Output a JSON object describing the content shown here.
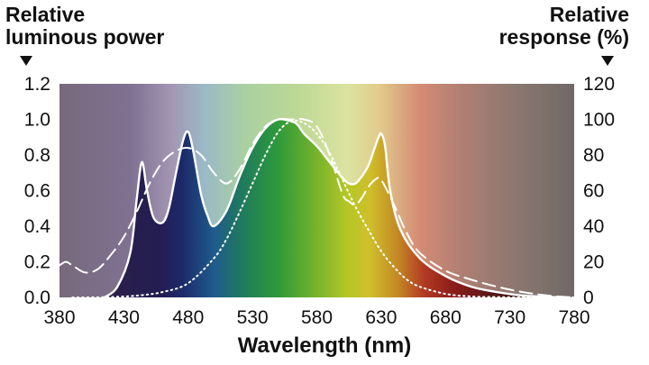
{
  "chart_data": {
    "type": "line",
    "title": "",
    "xlabel": "Wavelength (nm)",
    "ylabel_left": [
      "Relative",
      "luminous power"
    ],
    "ylabel_right": [
      "Relative",
      "response (%)"
    ],
    "xlim": [
      380,
      780
    ],
    "ylim_left": [
      0,
      1.2
    ],
    "ylim_right": [
      0,
      120
    ],
    "x_ticks": [
      "380",
      "430",
      "480",
      "530",
      "580",
      "630",
      "680",
      "730",
      "780"
    ],
    "y_ticks_left": [
      "0.0",
      "0.2",
      "0.4",
      "0.6",
      "0.8",
      "1.0",
      "1.2"
    ],
    "y_ticks_right": [
      "0",
      "20",
      "40",
      "60",
      "80",
      "100",
      "120"
    ],
    "background": "visible-spectrum gradient",
    "grid": false,
    "series": [
      {
        "style": "solid",
        "axis": "left",
        "fill": "spectrum-colored area under curve",
        "x": [
          415,
          425,
          435,
          440,
          444,
          448,
          453,
          460,
          465,
          470,
          476,
          480,
          484,
          490,
          495,
          500,
          510,
          520,
          530,
          540,
          550,
          560,
          565,
          570,
          580,
          590,
          600,
          605,
          610,
          615,
          620,
          625,
          628,
          630,
          633,
          637,
          645,
          660,
          680,
          700,
          720,
          740,
          760,
          770
        ],
        "y": [
          0.0,
          0.06,
          0.25,
          0.55,
          0.76,
          0.6,
          0.45,
          0.42,
          0.5,
          0.68,
          0.88,
          0.93,
          0.82,
          0.58,
          0.46,
          0.4,
          0.49,
          0.68,
          0.84,
          0.95,
          1.0,
          0.99,
          0.97,
          0.92,
          0.85,
          0.76,
          0.67,
          0.64,
          0.64,
          0.68,
          0.74,
          0.84,
          0.9,
          0.92,
          0.85,
          0.6,
          0.38,
          0.22,
          0.12,
          0.06,
          0.03,
          0.01,
          0.003,
          0.0
        ]
      },
      {
        "style": "dashed",
        "axis": "right",
        "x": [
          380,
          385,
          390,
          400,
          410,
          420,
          430,
          440,
          450,
          460,
          470,
          480,
          490,
          500,
          510,
          520,
          530,
          540,
          550,
          560,
          570,
          580,
          590,
          600,
          605,
          610,
          615,
          620,
          625,
          630,
          640,
          650,
          660,
          680,
          700,
          720,
          740,
          760,
          780
        ],
        "y": [
          18,
          20,
          18,
          14,
          16,
          24,
          34,
          48,
          64,
          76,
          82,
          84,
          80,
          70,
          64,
          72,
          86,
          96,
          100,
          100,
          100,
          96,
          80,
          58,
          54,
          52,
          56,
          62,
          66,
          66,
          52,
          36,
          25,
          15,
          10,
          6,
          3,
          1,
          0
        ]
      },
      {
        "style": "dotted",
        "axis": "right",
        "x": [
          390,
          400,
          420,
          440,
          460,
          480,
          500,
          510,
          520,
          530,
          540,
          550,
          560,
          570,
          580,
          590,
          600,
          610,
          620,
          630,
          640,
          650,
          660,
          680,
          700,
          720,
          740,
          760,
          780
        ],
        "y": [
          0,
          0,
          0.2,
          1,
          3,
          8,
          22,
          33,
          48,
          64,
          80,
          93,
          99,
          98,
          92,
          81,
          66,
          51,
          38,
          26,
          17,
          10,
          6,
          2,
          0.5,
          0.2,
          0,
          0,
          0
        ]
      }
    ]
  }
}
